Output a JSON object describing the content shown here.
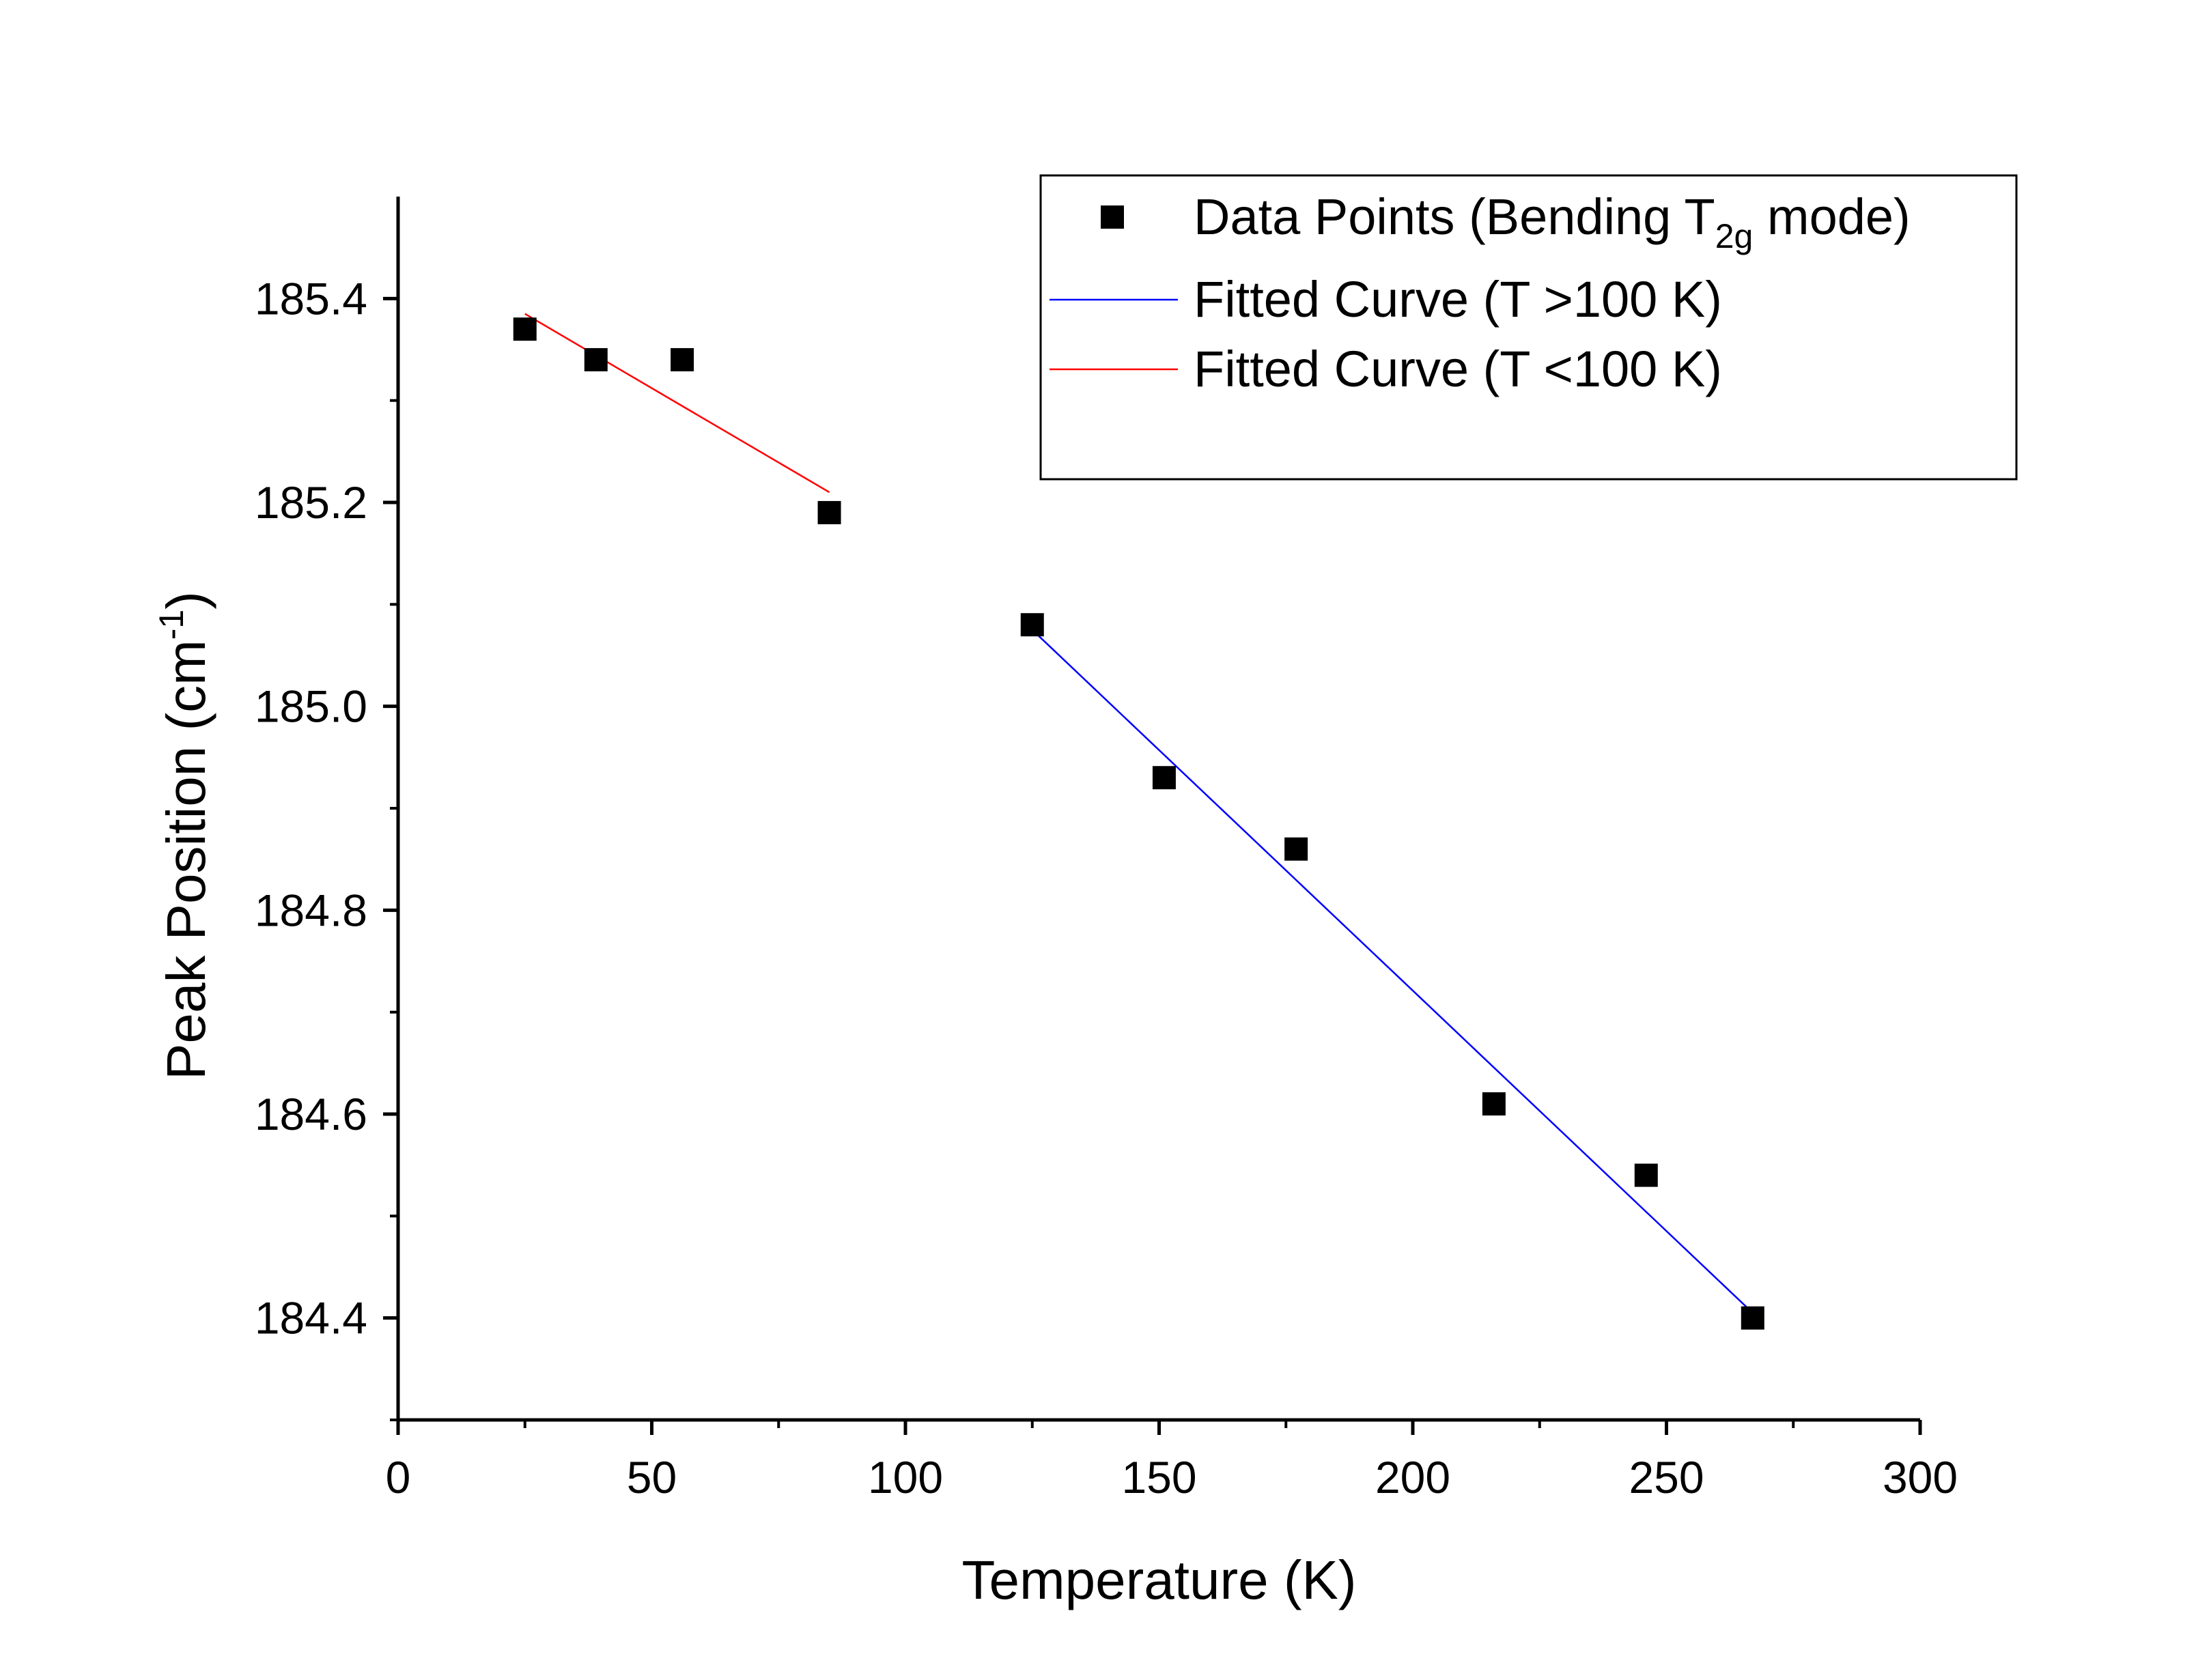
{
  "chart_data": {
    "type": "scatter",
    "xlabel": "Temperature (K)",
    "ylabel": {
      "main": "Peak Position (cm",
      "sup": "-1",
      "end": ")"
    },
    "xlim": [
      0,
      300
    ],
    "ylim": [
      184.3,
      185.5
    ],
    "xticks": [
      0,
      50,
      100,
      150,
      200,
      250,
      300
    ],
    "yticks": [
      184.4,
      184.6,
      184.8,
      185.0,
      185.2,
      185.4
    ],
    "xtick_labels": [
      "0",
      "50",
      "100",
      "150",
      "200",
      "250",
      "300"
    ],
    "ytick_labels": [
      "184.4",
      "184.6",
      "184.8",
      "185.0",
      "185.2",
      "185.4"
    ],
    "grid": false,
    "legend_position": "top-right",
    "series": [
      {
        "name": "Data Points (Bending T2g mode)",
        "kind": "scatter",
        "marker": "square",
        "color": "#000000",
        "x": [
          25,
          39,
          56,
          85,
          125,
          151,
          177,
          216,
          246,
          267
        ],
        "y": [
          185.37,
          185.34,
          185.34,
          185.19,
          185.08,
          184.93,
          184.86,
          184.61,
          184.54,
          184.4
        ]
      },
      {
        "name": "Fitted Curve (T >100 K)",
        "kind": "line",
        "color": "#0000ff",
        "x": [
          125,
          267
        ],
        "y": [
          185.075,
          184.405
        ]
      },
      {
        "name": "Fitted Curve (T <100 K)",
        "kind": "line",
        "color": "#ff0000",
        "x": [
          25,
          85
        ],
        "y": [
          185.385,
          185.21
        ]
      }
    ],
    "legend": [
      {
        "kind": "scatter",
        "text": "Data Points (Bending T",
        "sub": "2g",
        "after": " mode)",
        "color": "#000000"
      },
      {
        "kind": "line",
        "text": "Fitted Curve (T >100 K)",
        "color": "#0000ff"
      },
      {
        "kind": "line",
        "text": "Fitted Curve (T <100 K)",
        "color": "#ff0000"
      }
    ]
  }
}
